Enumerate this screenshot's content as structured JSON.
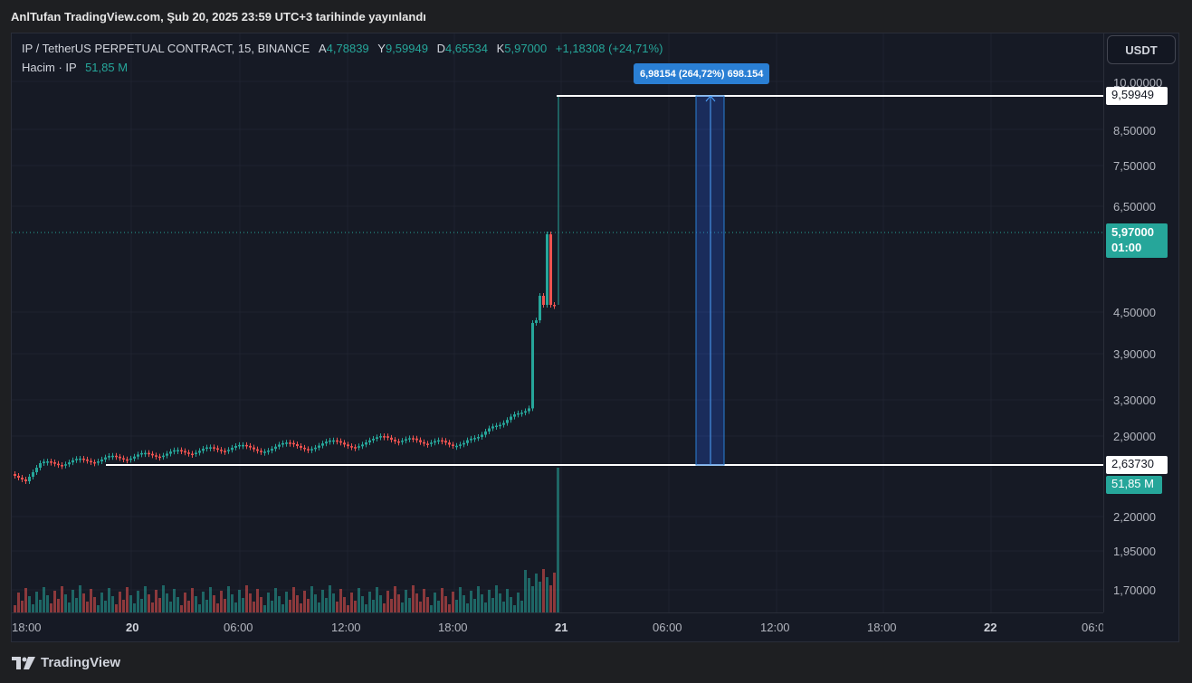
{
  "caption": "AnlTufan TradingView.com, Şub 20, 2025 23:59 UTC+3 tarihinde yayınlandı",
  "symbol": {
    "name": "IP / TetherUS PERPETUAL CONTRACT, 15, BINANCE",
    "open_key": "A",
    "open": "4,78839",
    "high_key": "Y",
    "high": "9,59949",
    "low_key": "D",
    "low": "4,65534",
    "close_key": "K",
    "close": "5,97000",
    "change": "+1,18308 (+24,71%)"
  },
  "volume": {
    "label": "Hacim · IP",
    "value": "51,85 M"
  },
  "currency_button": "USDT",
  "measure": {
    "label": "6,98154 (264,72%) 698.154"
  },
  "price_ticks": [
    "10,00000",
    "8,50000",
    "7,50000",
    "6,50000",
    "4,50000",
    "3,90000",
    "3,30000",
    "2,90000",
    "2,20000",
    "1,95000",
    "1,70000"
  ],
  "price_tags": {
    "high_line": "9,59949",
    "low_line": "2,63730",
    "last_price": "5,97000",
    "countdown": "01:00",
    "volume_tag": "51,85 M"
  },
  "time_ticks": [
    "18:00",
    "20",
    "06:00",
    "12:00",
    "18:00",
    "21",
    "06:00",
    "12:00",
    "18:00",
    "22",
    "06:0"
  ],
  "footer": "TradingView",
  "colors": {
    "up": "#26a69a",
    "down": "#ef5350",
    "measure": "#2a7fd4"
  },
  "icons": {
    "logo": "tradingview-logo-icon"
  }
}
